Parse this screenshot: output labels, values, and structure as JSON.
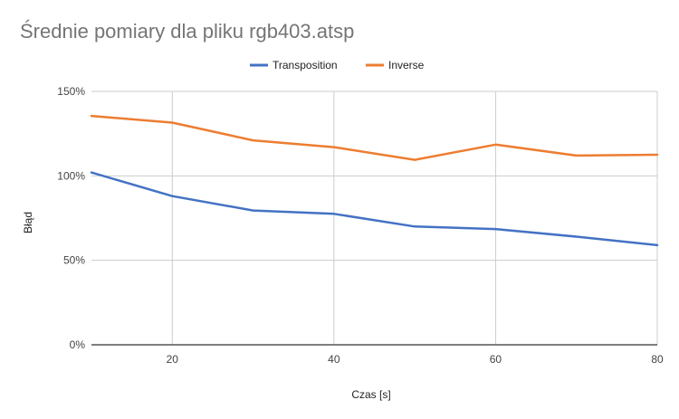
{
  "chart_data": {
    "type": "line",
    "title": "Średnie pomiary dla pliku rgb403.atsp",
    "xlabel": "Czas [s]",
    "ylabel": "Błąd",
    "x": [
      10,
      20,
      30,
      40,
      50,
      60,
      70,
      80
    ],
    "xlim": [
      10,
      80
    ],
    "ylim": [
      0,
      1.5
    ],
    "x_ticks": [
      20,
      40,
      60,
      80
    ],
    "y_ticks": [
      0,
      0.5,
      1.0,
      1.5
    ],
    "x_tick_labels": [
      "20",
      "40",
      "60",
      "80"
    ],
    "y_tick_labels": [
      "0%",
      "50%",
      "100%",
      "150%"
    ],
    "grid": true,
    "legend_position": "top",
    "series": [
      {
        "name": "Transposition",
        "color": "#4472c4",
        "values": [
          1.02,
          0.88,
          0.795,
          0.775,
          0.7,
          0.685,
          0.64,
          0.59
        ]
      },
      {
        "name": "Inverse",
        "color": "#ed7d31",
        "values": [
          1.355,
          1.315,
          1.21,
          1.17,
          1.095,
          1.185,
          1.12,
          1.125
        ]
      }
    ]
  }
}
